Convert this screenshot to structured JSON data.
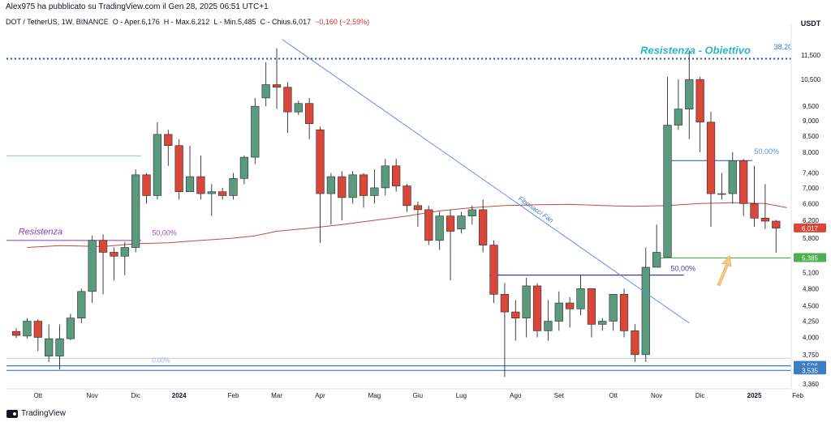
{
  "publisher_text": "Alex975 ha pubblicato su TradingView.com il Gen 28, 2025 06:51 UTC+1",
  "legend": {
    "symbol": "DOT / TetherUS, 1W, BINANCE",
    "open": "O - Aper.6,176",
    "high": "H - Max.6,212",
    "low": "L - Min.5,485",
    "close": "C - Chius.6,017",
    "change": "−0,160 (−2,59%)"
  },
  "brand": "TradingView",
  "colors": {
    "up": "#5a9a7e",
    "down": "#d9473a",
    "ma": "#c44a44",
    "fib": "#5b8def"
  },
  "chart_data": {
    "type": "candlestick",
    "currency_label": "USDT",
    "y_scale": "log",
    "ylim": [
      3.3,
      12.6
    ],
    "y_ticks": [
      {
        "value": 11.5,
        "label": "11,500"
      },
      {
        "value": 10.5,
        "label": "10,500"
      },
      {
        "value": 9.5,
        "label": "9,500"
      },
      {
        "value": 9.0,
        "label": "9,000"
      },
      {
        "value": 8.5,
        "label": "8,500"
      },
      {
        "value": 8.0,
        "label": "8,000"
      },
      {
        "value": 7.4,
        "label": "7,400"
      },
      {
        "value": 7.0,
        "label": "7,000"
      },
      {
        "value": 6.6,
        "label": "6,600"
      },
      {
        "value": 6.2,
        "label": "6,200"
      },
      {
        "value": 5.8,
        "label": "5,800"
      },
      {
        "value": 5.1,
        "label": "5,100"
      },
      {
        "value": 4.8,
        "label": "4,800"
      },
      {
        "value": 4.5,
        "label": "4,500"
      },
      {
        "value": 4.25,
        "label": "4,250"
      },
      {
        "value": 4.0,
        "label": "4,000"
      },
      {
        "value": 3.75,
        "label": "3,750"
      },
      {
        "value": 3.36,
        "label": "3,360"
      }
    ],
    "x_ticks": [
      {
        "week": 2,
        "label": "Ott",
        "bold": false
      },
      {
        "week": 7,
        "label": "Nov",
        "bold": false
      },
      {
        "week": 11,
        "label": "Dic",
        "bold": false
      },
      {
        "week": 15,
        "label": "2024",
        "bold": true
      },
      {
        "week": 20,
        "label": "Feb",
        "bold": false
      },
      {
        "week": 24,
        "label": "Mar",
        "bold": false
      },
      {
        "week": 28,
        "label": "Apr",
        "bold": false
      },
      {
        "week": 33,
        "label": "Mag",
        "bold": false
      },
      {
        "week": 37,
        "label": "Giu",
        "bold": false
      },
      {
        "week": 41,
        "label": "Lug",
        "bold": false
      },
      {
        "week": 46,
        "label": "Ago",
        "bold": false
      },
      {
        "week": 50,
        "label": "Set",
        "bold": false
      },
      {
        "week": 55,
        "label": "Ott",
        "bold": false
      },
      {
        "week": 59,
        "label": "Nov",
        "bold": false
      },
      {
        "week": 63,
        "label": "Dic",
        "bold": false
      },
      {
        "week": 68,
        "label": "2025",
        "bold": true
      },
      {
        "week": 72,
        "label": "Feb",
        "bold": false
      }
    ],
    "candles": [
      [
        4.09,
        4.03,
        4.14,
        3.99
      ],
      [
        4.02,
        4.25,
        4.3,
        3.98
      ],
      [
        4.25,
        4.0,
        4.28,
        3.8
      ],
      [
        3.73,
        3.98,
        4.2,
        3.65
      ],
      [
        3.73,
        3.98,
        4.2,
        3.55
      ],
      [
        3.98,
        4.3,
        4.37,
        3.96
      ],
      [
        4.3,
        4.75,
        4.8,
        4.22
      ],
      [
        4.75,
        5.75,
        5.85,
        4.55
      ],
      [
        5.75,
        5.5,
        5.88,
        4.7
      ],
      [
        5.5,
        5.42,
        5.6,
        4.95
      ],
      [
        5.42,
        5.6,
        5.72,
        5.05
      ],
      [
        5.6,
        7.35,
        7.5,
        5.5
      ],
      [
        7.35,
        6.8,
        7.4,
        6.6
      ],
      [
        6.8,
        8.55,
        8.95,
        6.7
      ],
      [
        8.55,
        8.2,
        8.7,
        7.6
      ],
      [
        8.2,
        6.9,
        8.4,
        6.7
      ],
      [
        6.9,
        7.3,
        8.2,
        6.9
      ],
      [
        7.3,
        6.85,
        7.9,
        6.7
      ],
      [
        6.85,
        6.9,
        7.1,
        6.3
      ],
      [
        6.9,
        6.8,
        7.0,
        6.7
      ],
      [
        6.8,
        7.25,
        7.4,
        6.7
      ],
      [
        7.25,
        7.85,
        7.9,
        7.1
      ],
      [
        7.85,
        9.5,
        9.8,
        7.65
      ],
      [
        9.8,
        10.3,
        11.2,
        9.5
      ],
      [
        10.3,
        10.2,
        11.8,
        9.4
      ],
      [
        10.2,
        9.3,
        10.4,
        8.6
      ],
      [
        9.3,
        9.6,
        9.7,
        9.2
      ],
      [
        9.6,
        8.9,
        9.8,
        8.4
      ],
      [
        8.7,
        6.85,
        8.8,
        5.7
      ],
      [
        6.85,
        7.3,
        7.4,
        6.1
      ],
      [
        7.3,
        6.75,
        7.45,
        6.2
      ],
      [
        6.75,
        7.35,
        7.45,
        6.6
      ],
      [
        7.35,
        6.8,
        7.4,
        6.5
      ],
      [
        6.8,
        7.0,
        7.5,
        6.6
      ],
      [
        7.0,
        7.6,
        7.8,
        6.8
      ],
      [
        7.6,
        7.05,
        7.8,
        6.9
      ],
      [
        7.05,
        6.55,
        7.1,
        6.4
      ],
      [
        6.55,
        6.45,
        6.65,
        6.05
      ],
      [
        6.45,
        5.75,
        6.55,
        5.65
      ],
      [
        5.75,
        6.3,
        6.4,
        5.55
      ],
      [
        6.3,
        5.95,
        6.45,
        4.95
      ],
      [
        6.0,
        6.3,
        6.4,
        5.9
      ],
      [
        6.3,
        6.45,
        6.55,
        6.1
      ],
      [
        6.45,
        5.65,
        6.7,
        5.5
      ],
      [
        5.65,
        4.7,
        5.75,
        4.55
      ],
      [
        4.7,
        4.4,
        4.9,
        3.45
      ],
      [
        4.4,
        4.3,
        4.6,
        3.95
      ],
      [
        4.3,
        4.85,
        5.0,
        4.0
      ],
      [
        4.85,
        4.1,
        4.9,
        4.0
      ],
      [
        4.1,
        4.25,
        4.6,
        3.95
      ],
      [
        4.25,
        4.55,
        4.75,
        4.1
      ],
      [
        4.55,
        4.45,
        4.65,
        4.15
      ],
      [
        4.45,
        4.8,
        5.05,
        4.35
      ],
      [
        4.8,
        4.2,
        4.8,
        4.0
      ],
      [
        4.2,
        4.25,
        4.3,
        4.1
      ],
      [
        4.25,
        4.7,
        4.7,
        4.1
      ],
      [
        4.7,
        4.1,
        4.8,
        4.0
      ],
      [
        4.1,
        3.75,
        4.2,
        3.65
      ],
      [
        3.75,
        5.2,
        5.6,
        3.65
      ],
      [
        5.2,
        5.5,
        6.1,
        5.2
      ],
      [
        5.4,
        8.85,
        10.6,
        5.4
      ],
      [
        8.85,
        9.4,
        10.5,
        8.7
      ],
      [
        9.4,
        10.5,
        11.7,
        8.4
      ],
      [
        10.5,
        8.95,
        10.6,
        8.0
      ],
      [
        8.95,
        6.85,
        9.3,
        6.05
      ],
      [
        6.85,
        6.85,
        7.4,
        6.7
      ],
      [
        6.85,
        7.75,
        8.0,
        6.6
      ],
      [
        7.75,
        6.6,
        7.8,
        6.3
      ],
      [
        6.6,
        6.25,
        7.6,
        6.05
      ],
      [
        6.25,
        6.18,
        7.1,
        6.0
      ],
      [
        6.18,
        6.02,
        6.21,
        5.49
      ]
    ],
    "moving_average": [
      [
        1,
        5.6
      ],
      [
        4,
        5.64
      ],
      [
        8,
        5.62
      ],
      [
        11,
        5.68
      ],
      [
        14,
        5.7
      ],
      [
        17,
        5.75
      ],
      [
        20,
        5.8
      ],
      [
        22,
        5.85
      ],
      [
        24,
        5.95
      ],
      [
        27,
        6.02
      ],
      [
        30,
        6.1
      ],
      [
        33,
        6.2
      ],
      [
        36,
        6.3
      ],
      [
        39,
        6.42
      ],
      [
        42,
        6.5
      ],
      [
        45,
        6.55
      ],
      [
        48,
        6.57
      ],
      [
        51,
        6.58
      ],
      [
        54,
        6.55
      ],
      [
        57,
        6.53
      ],
      [
        60,
        6.55
      ],
      [
        63,
        6.6
      ],
      [
        66,
        6.62
      ],
      [
        69,
        6.6
      ],
      [
        71,
        6.5
      ]
    ],
    "horizontal_lines": [
      {
        "value": 11.35,
        "color": "#2a4fa8",
        "dashed": true,
        "x0": 0,
        "x1": 72
      },
      {
        "value": 5.75,
        "color": "#9c4fc4",
        "dashed": false,
        "x0": 0,
        "x1": 11.5
      },
      {
        "value": 7.89,
        "color": "#8fd6d0",
        "dashed": false,
        "x0": 0,
        "x1": 11.5
      },
      {
        "value": 5.385,
        "color": "#4caf50",
        "dashed": false,
        "x0": 59.5,
        "x1": 72
      },
      {
        "value": 5.05,
        "color": "#3f3ca8",
        "dashed": false,
        "x0": 44.5,
        "x1": 61.5
      },
      {
        "value": 7.75,
        "color": "#2a6fd1",
        "dashed": false,
        "x0": 61.2,
        "x1": 67.8
      },
      {
        "value": 3.596,
        "color": "#3a7ec1",
        "dashed": false,
        "x0": 0,
        "x1": 72
      },
      {
        "value": 3.535,
        "color": "#3a7ec1",
        "dashed": false,
        "x0": 0,
        "x1": 72
      },
      {
        "value": 3.7,
        "color": "#cfd8dc",
        "dashed": false,
        "x0": 0,
        "x1": 72
      }
    ],
    "fib_fan_line": {
      "from": [
        24.5,
        12.2
      ],
      "to": [
        62,
        4.22
      ]
    },
    "annotations": [
      {
        "text": "Resistenza - Obiettivo",
        "x": 57.5,
        "y": 11.55,
        "color": "#29b6c8",
        "size": 13,
        "italic": true,
        "bold": true
      },
      {
        "text": "Resistenza",
        "x": 0.2,
        "y": 5.88,
        "color": "#8e3bbd",
        "size": 11,
        "italic": true,
        "bold": false
      },
      {
        "text": "50,00%",
        "x": 12.5,
        "y": 5.86,
        "color": "#9c4fc4",
        "size": 9,
        "italic": false,
        "bold": false
      },
      {
        "text": "38,20%",
        "x": 69.8,
        "y": 11.75,
        "color": "#3a6fd1",
        "size": 9,
        "italic": false,
        "bold": false
      },
      {
        "text": "50,00%",
        "x": 68.0,
        "y": 7.95,
        "color": "#5b8def",
        "size": 9,
        "italic": false,
        "bold": false
      },
      {
        "text": "50,00%",
        "x": 60.3,
        "y": 5.13,
        "color": "#3f3ca8",
        "size": 9,
        "italic": false,
        "bold": false
      },
      {
        "text": "0,00%",
        "x": 12.5,
        "y": 3.64,
        "color": "#9fb4d8",
        "size": 8,
        "italic": false,
        "bold": false
      }
    ],
    "fib_fan_label": "Fibonacci Fan",
    "price_labels": [
      {
        "value": 6.017,
        "label": "6,017",
        "bg": "#d9473a"
      },
      {
        "value": 5.385,
        "label": "5,385",
        "bg": "#4caf50"
      },
      {
        "value": 3.596,
        "label": "3,596",
        "bg": "#3a7ec1"
      },
      {
        "value": 3.535,
        "label": "3,535",
        "bg": "#3a7ec1"
      }
    ]
  }
}
